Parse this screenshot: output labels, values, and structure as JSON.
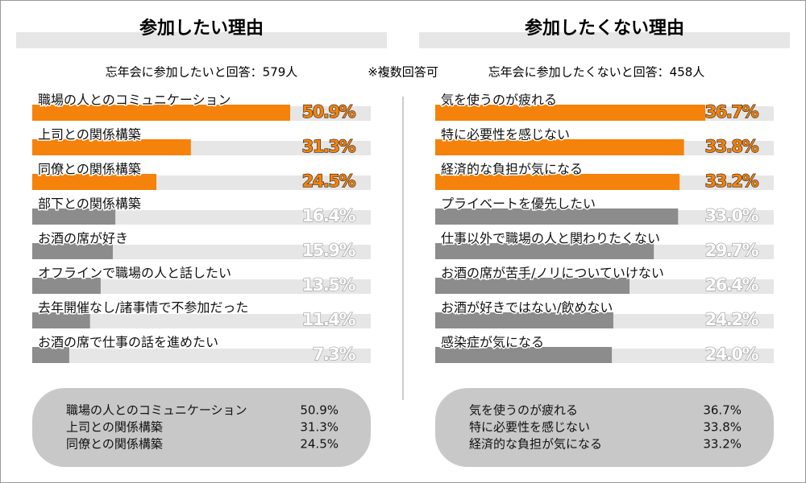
{
  "note": "※複数回答可",
  "chart_data": [
    {
      "type": "bar",
      "orientation": "horizontal",
      "title": "参加したい理由",
      "subtitle": "忘年会に参加したいと回答：579人",
      "categories": [
        "職場の人とのコミュニケーション",
        "上司との関係構築",
        "同僚との関係構築",
        "部下との関係構築",
        "お酒の席が好き",
        "オフラインで職場の人と話したい",
        "去年開催なし/諸事情で不参加だった",
        "お酒の席で仕事の話を進めたい"
      ],
      "values": [
        50.9,
        31.3,
        24.5,
        16.4,
        15.9,
        13.5,
        11.4,
        7.3
      ],
      "value_labels": [
        "50.9%",
        "31.3%",
        "24.5%",
        "16.4%",
        "15.9%",
        "13.5%",
        "11.4%",
        "7.3%"
      ],
      "colors": [
        "#f5820a",
        "#f5820a",
        "#f5820a",
        "#8c8c8c",
        "#8c8c8c",
        "#8c8c8c",
        "#8c8c8c",
        "#8c8c8c"
      ],
      "xlim": [
        0,
        66.8
      ]
    },
    {
      "type": "bar",
      "orientation": "horizontal",
      "title": "参加したくない理由",
      "subtitle": "忘年会に参加したくないと回答：458人",
      "categories": [
        "気を使うのが疲れる",
        "特に必要性を感じない",
        "経済的な負担が気になる",
        "プライベートを優先したい",
        "仕事以外で職場の人と関わりたくない",
        "お酒の席が苦手/ノリについていけない",
        "お酒が好きではない/飲めない",
        "感染症が気になる"
      ],
      "values": [
        36.7,
        33.8,
        33.2,
        33.0,
        29.7,
        26.4,
        24.2,
        24.0
      ],
      "value_labels": [
        "36.7%",
        "33.8%",
        "33.2%",
        "33.0%",
        "29.7%",
        "26.4%",
        "24.2%",
        "24.0%"
      ],
      "colors": [
        "#f5820a",
        "#f5820a",
        "#f5820a",
        "#8c8c8c",
        "#8c8c8c",
        "#8c8c8c",
        "#8c8c8c",
        "#8c8c8c"
      ],
      "xlim": [
        0,
        46
      ]
    }
  ]
}
